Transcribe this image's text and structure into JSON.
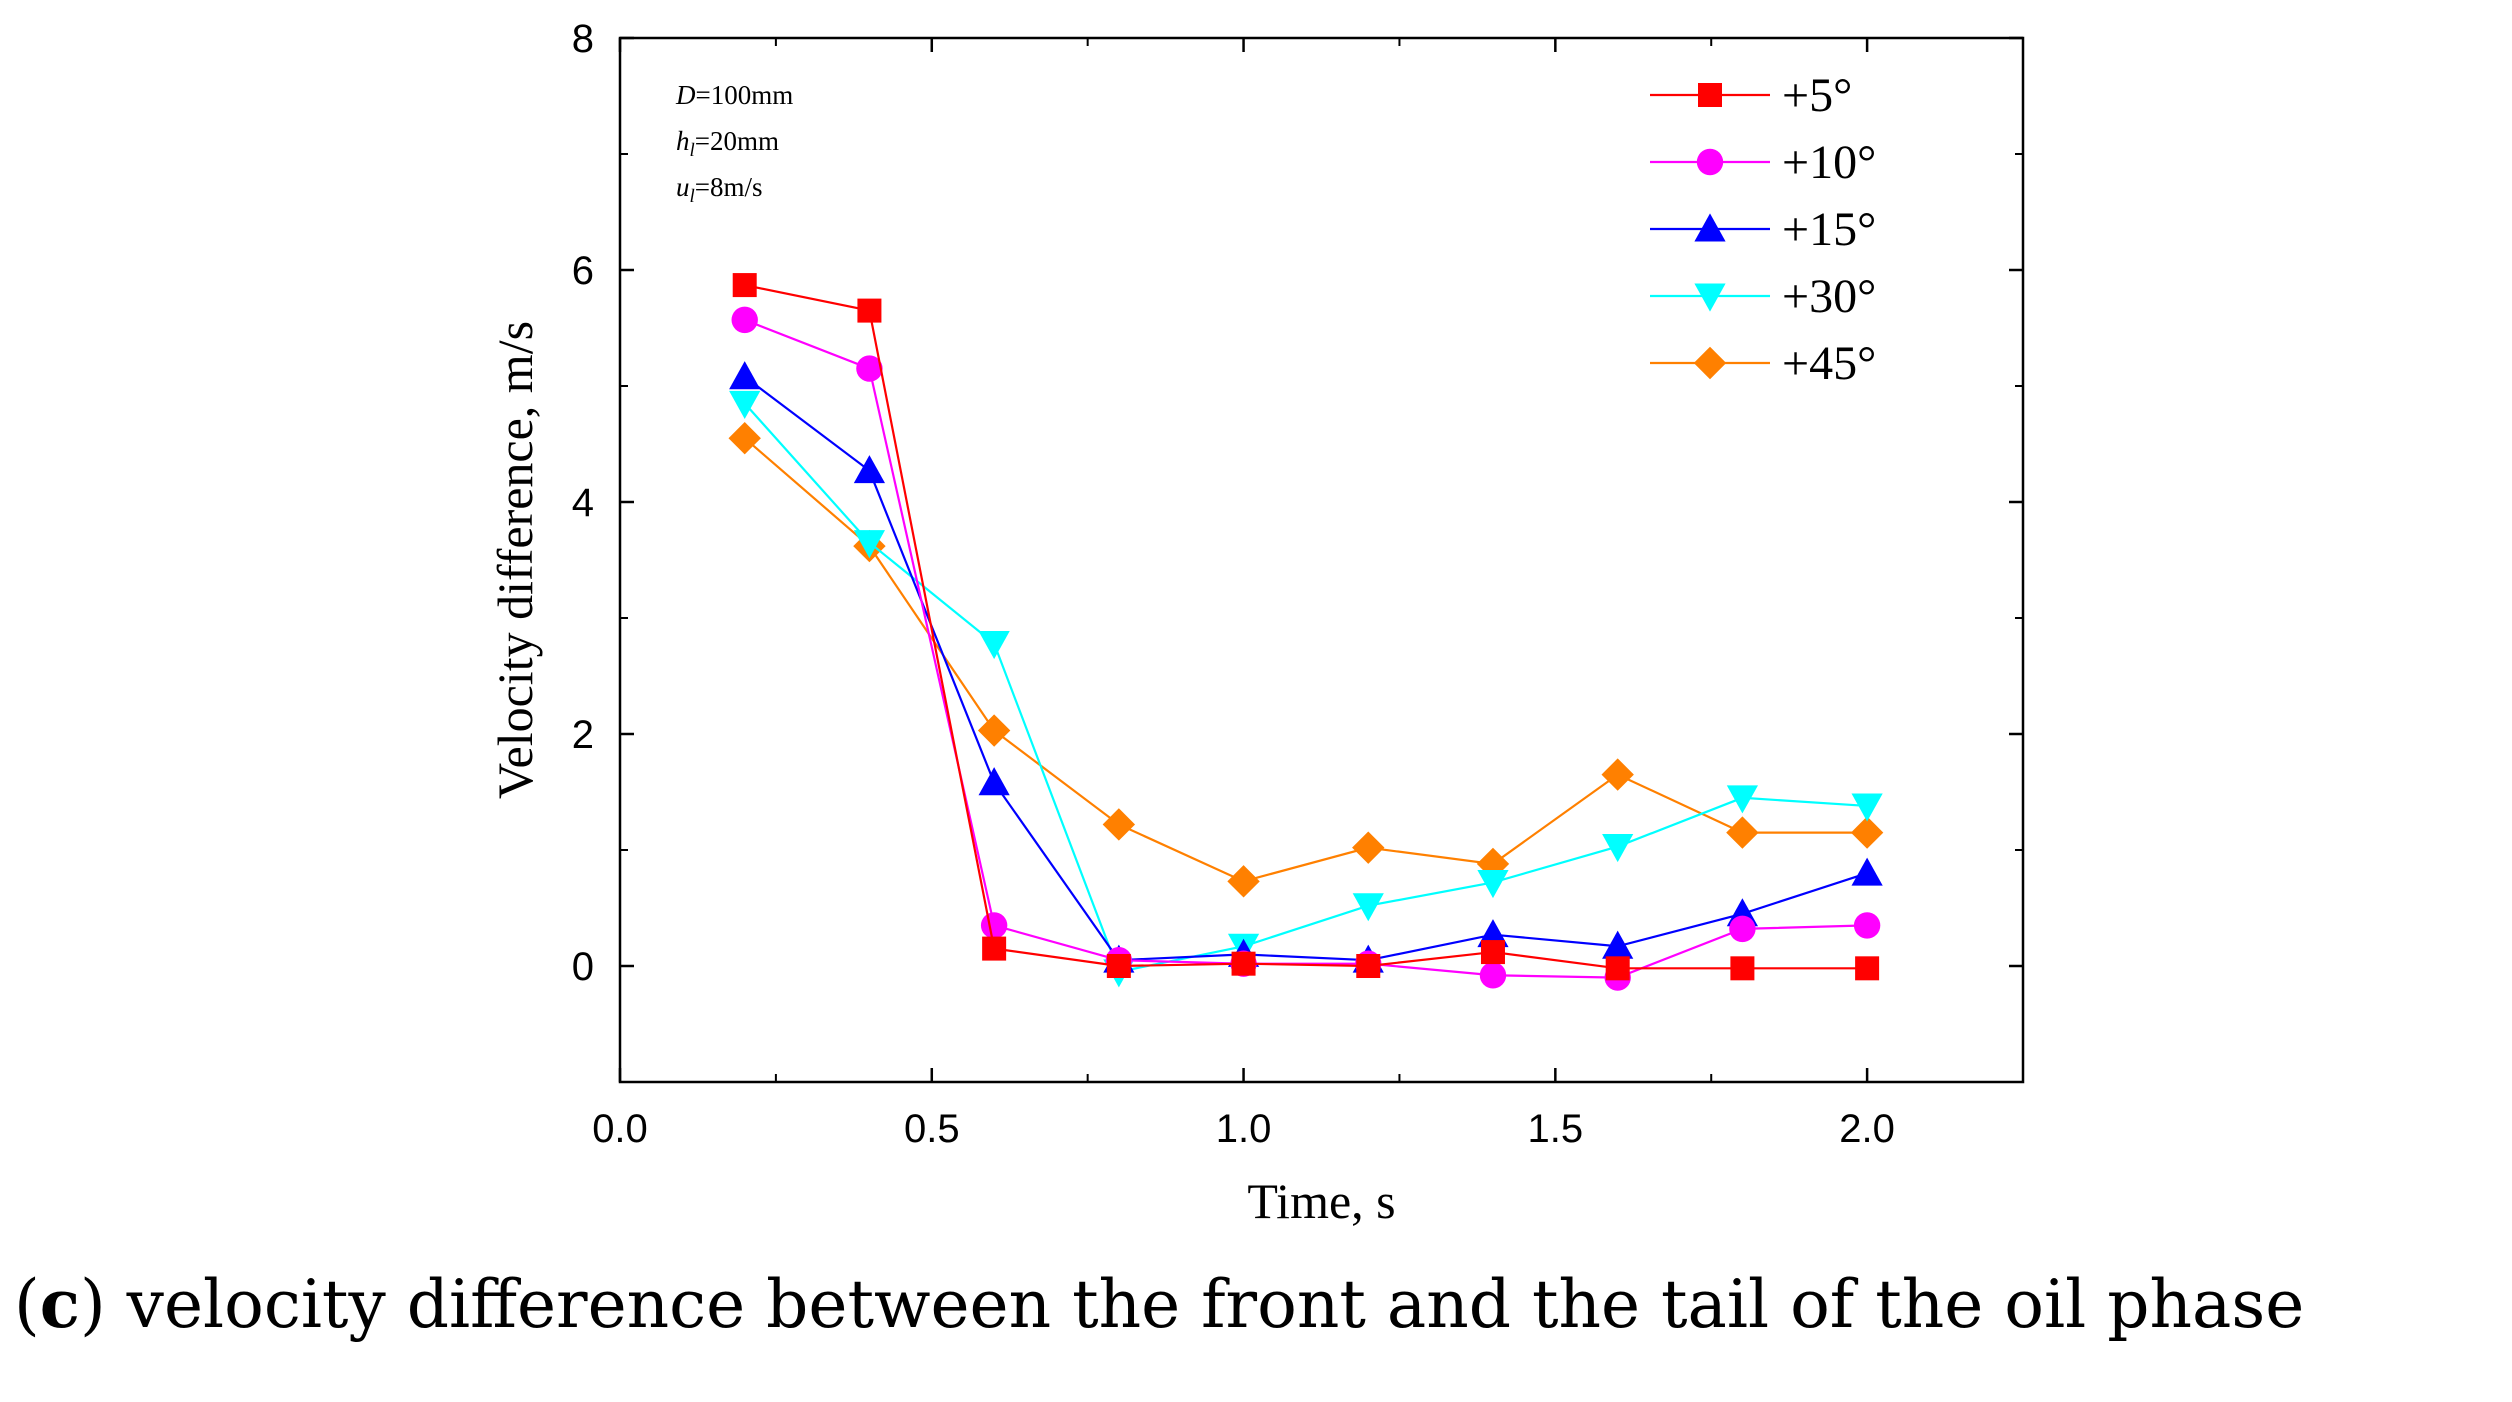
{
  "chart_data": {
    "type": "line",
    "xlabel": "Time, s",
    "ylabel": "Velocity difference,  m/s",
    "xlim": [
      0.0,
      2.25
    ],
    "ylim": [
      -1.0,
      8.0
    ],
    "xticks": [
      0.0,
      0.5,
      1.0,
      1.5,
      2.0
    ],
    "xtick_labels": [
      "0.0",
      "0.5",
      "1.0",
      "1.5",
      "2.0"
    ],
    "yticks": [
      0,
      2,
      4,
      6,
      8
    ],
    "ytick_labels": [
      "0",
      "2",
      "4",
      "6",
      "8"
    ],
    "grid": false,
    "legend_position": "top-right",
    "annotations": {
      "D": {
        "symbol": "D",
        "sub": "",
        "value": "=100mm"
      },
      "h": {
        "symbol": "h",
        "sub": "l",
        "value": "=20mm"
      },
      "u": {
        "symbol": "u",
        "sub": "l",
        "value": "=8m/s"
      }
    },
    "x": [
      0.2,
      0.4,
      0.6,
      0.8,
      1.0,
      1.2,
      1.4,
      1.6,
      1.8,
      2.0
    ],
    "series": [
      {
        "name": "+5°",
        "color": "#ff0000",
        "marker": "square",
        "values": [
          5.87,
          5.65,
          0.15,
          0.0,
          0.02,
          0.0,
          0.12,
          -0.02,
          -0.02,
          -0.02
        ]
      },
      {
        "name": "+10°",
        "color": "#ff00ff",
        "marker": "circle",
        "values": [
          5.57,
          5.15,
          0.35,
          0.05,
          0.02,
          0.02,
          -0.08,
          -0.1,
          0.32,
          0.35
        ]
      },
      {
        "name": "+15°",
        "color": "#0000ff",
        "marker": "triangle-up",
        "values": [
          5.08,
          4.27,
          1.58,
          0.05,
          0.1,
          0.05,
          0.27,
          0.17,
          0.45,
          0.8
        ]
      },
      {
        "name": "+30°",
        "color": "#00ffff",
        "marker": "triangle-down",
        "values": [
          4.85,
          3.65,
          2.78,
          -0.05,
          0.17,
          0.52,
          0.72,
          1.03,
          1.45,
          1.38
        ]
      },
      {
        "name": "+45°",
        "color": "#ff8000",
        "marker": "diamond",
        "values": [
          4.55,
          3.62,
          2.03,
          1.22,
          0.73,
          1.02,
          0.88,
          1.65,
          1.15,
          1.15
        ]
      }
    ]
  },
  "caption": {
    "label": "c",
    "text": " velocity difference between the front and the tail of the oil phase"
  }
}
